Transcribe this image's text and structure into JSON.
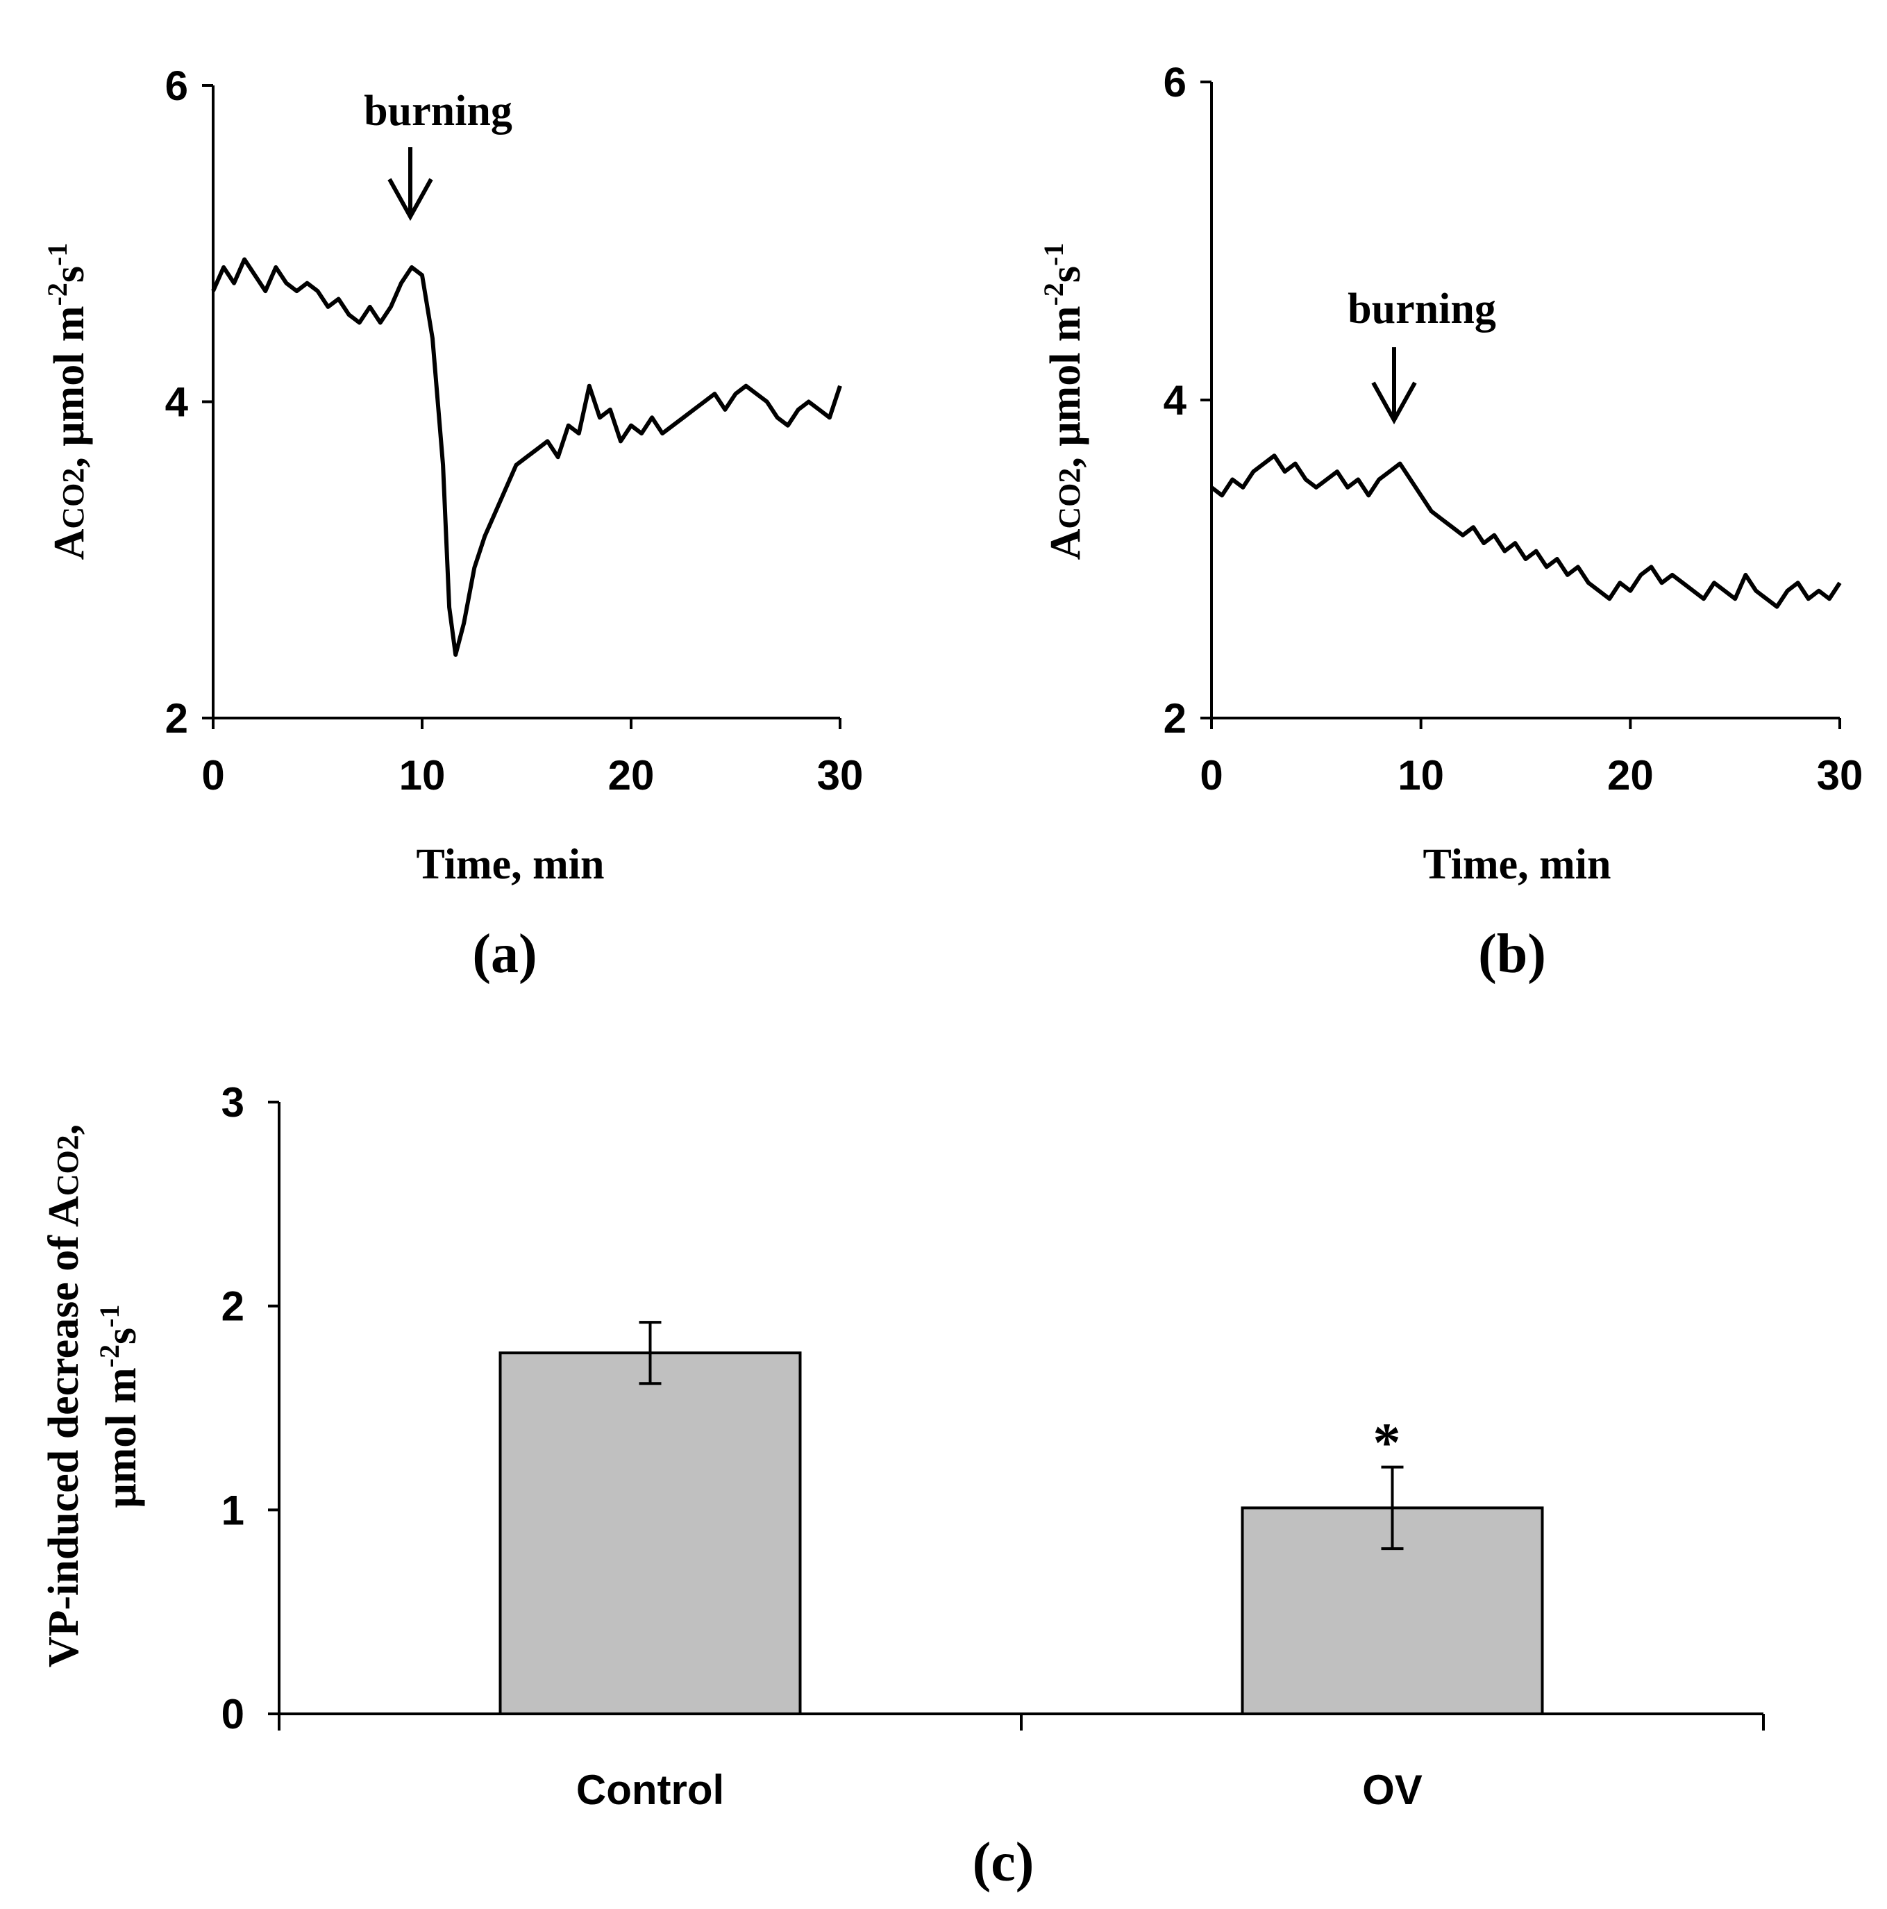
{
  "chart_data": [
    {
      "panel": "(a)",
      "type": "line",
      "xlabel": "Time, min",
      "ylabel": "ACO2, μmol m-2s-1",
      "ylabel_parts": {
        "main": "A",
        "sub": "CO2",
        "unit": ", μmol m",
        "exp1": "-2",
        "s": "s",
        "exp2": "-1"
      },
      "xlim": [
        0,
        30
      ],
      "ylim": [
        2,
        6
      ],
      "xticks": [
        0,
        10,
        20,
        30
      ],
      "yticks": [
        2,
        4,
        6
      ],
      "annotation": {
        "text": "burning",
        "x": 9.5,
        "y": 5.05
      },
      "series": [
        {
          "x": [
            0,
            0.5,
            1,
            1.5,
            2,
            2.5,
            3,
            3.5,
            4,
            4.5,
            5,
            5.5,
            6,
            6.5,
            7,
            7.5,
            8,
            8.5,
            9,
            9.5,
            10,
            10.5,
            11,
            11.3,
            11.6,
            12,
            12.5,
            13,
            13.5,
            14,
            14.5,
            15,
            15.5,
            16,
            16.5,
            17,
            17.5,
            18,
            18.5,
            19,
            19.5,
            20,
            20.5,
            21,
            21.5,
            22,
            22.5,
            23,
            23.5,
            24,
            24.5,
            25,
            25.5,
            26,
            26.5,
            27,
            27.5,
            28,
            28.5,
            29,
            29.5,
            30
          ],
          "values": [
            4.7,
            4.85,
            4.75,
            4.9,
            4.8,
            4.7,
            4.85,
            4.75,
            4.7,
            4.75,
            4.7,
            4.6,
            4.65,
            4.55,
            4.5,
            4.6,
            4.5,
            4.6,
            4.75,
            4.85,
            4.8,
            4.4,
            3.6,
            2.7,
            2.4,
            2.6,
            2.95,
            3.15,
            3.3,
            3.45,
            3.6,
            3.65,
            3.7,
            3.75,
            3.65,
            3.85,
            3.8,
            4.1,
            3.9,
            3.95,
            3.75,
            3.85,
            3.8,
            3.9,
            3.8,
            3.85,
            3.9,
            3.95,
            4.0,
            4.05,
            3.95,
            4.05,
            4.1,
            4.05,
            4.0,
            3.9,
            3.85,
            3.95,
            4.0,
            3.95,
            3.9,
            4.1
          ]
        }
      ]
    },
    {
      "panel": "(b)",
      "type": "line",
      "xlabel": "Time, min",
      "ylabel": "ACO2, μmol m-2s-1",
      "ylabel_parts": {
        "main": "A",
        "sub": "CO2",
        "unit": ", μmol m",
        "exp1": "-2",
        "s": "s",
        "exp2": "-1"
      },
      "xlim": [
        0,
        30
      ],
      "ylim": [
        2,
        6
      ],
      "xticks": [
        0,
        10,
        20,
        30
      ],
      "yticks": [
        2,
        4,
        6
      ],
      "annotation": {
        "text": "burning",
        "x": 8.7,
        "y": 3.72
      },
      "series": [
        {
          "x": [
            0,
            0.5,
            1,
            1.5,
            2,
            2.5,
            3,
            3.5,
            4,
            4.5,
            5,
            5.5,
            6,
            6.5,
            7,
            7.5,
            8,
            8.5,
            9,
            9.5,
            10,
            10.5,
            11,
            11.5,
            12,
            12.5,
            13,
            13.5,
            14,
            14.5,
            15,
            15.5,
            16,
            16.5,
            17,
            17.5,
            18,
            18.5,
            19,
            19.5,
            20,
            20.5,
            21,
            21.5,
            22,
            22.5,
            23,
            23.5,
            24,
            24.5,
            25,
            25.5,
            26,
            26.5,
            27,
            27.5,
            28,
            28.5,
            29,
            29.5,
            30
          ],
          "values": [
            3.45,
            3.4,
            3.5,
            3.45,
            3.55,
            3.6,
            3.65,
            3.55,
            3.6,
            3.5,
            3.45,
            3.5,
            3.55,
            3.45,
            3.5,
            3.4,
            3.5,
            3.55,
            3.6,
            3.5,
            3.4,
            3.3,
            3.25,
            3.2,
            3.15,
            3.2,
            3.1,
            3.15,
            3.05,
            3.1,
            3.0,
            3.05,
            2.95,
            3.0,
            2.9,
            2.95,
            2.85,
            2.8,
            2.75,
            2.85,
            2.8,
            2.9,
            2.95,
            2.85,
            2.9,
            2.85,
            2.8,
            2.75,
            2.85,
            2.8,
            2.75,
            2.9,
            2.8,
            2.75,
            2.7,
            2.8,
            2.85,
            2.75,
            2.8,
            2.75,
            2.85
          ]
        }
      ]
    },
    {
      "panel": "(c)",
      "type": "bar",
      "ylabel_line1": "VP-induced decrease of ACO2,",
      "ylabel_line1_parts": {
        "main": "VP-induced decrease of A",
        "sub": "CO2",
        "tail": ","
      },
      "ylabel_line2": "μmol m-2s-1",
      "ylabel_line2_parts": {
        "unit": "μmol m",
        "exp1": "-2",
        "s": "s",
        "exp2": "-1"
      },
      "categories": [
        "Control",
        "OV"
      ],
      "values": [
        1.77,
        1.01
      ],
      "errors": [
        0.15,
        0.2
      ],
      "significance": [
        "",
        "*"
      ],
      "ylim": [
        0,
        3
      ],
      "yticks": [
        0,
        1,
        2,
        3
      ],
      "bar_color": "#c0c0c0"
    }
  ]
}
